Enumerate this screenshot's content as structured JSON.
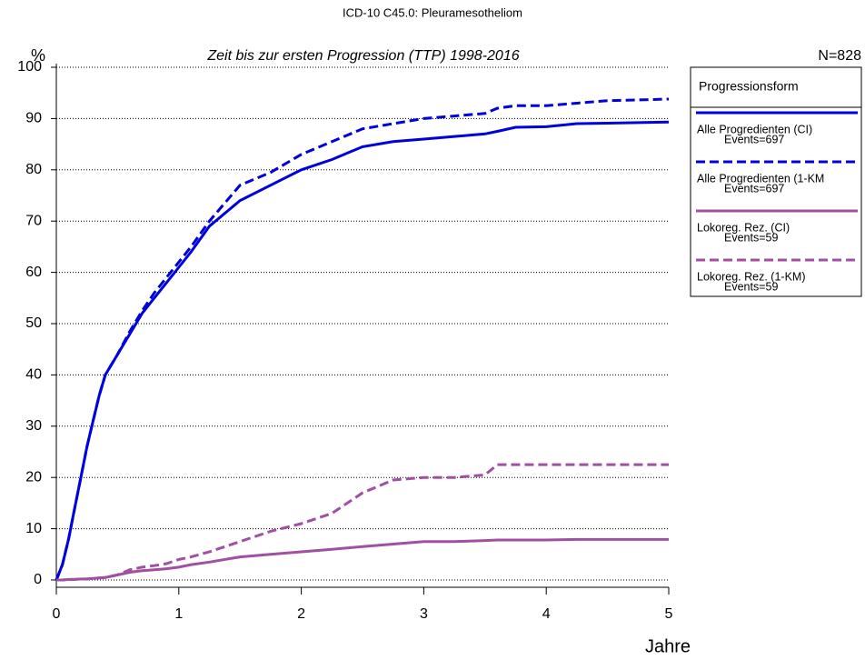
{
  "chart_data": {
    "type": "line",
    "title": "ICD-10 C45.0: Pleuramesotheliom",
    "subtitle": "Zeit bis zur ersten Progression (TTP) 1998-2016",
    "y_label": "%",
    "x_label": "Jahre",
    "annotation": "N=828",
    "legend_title": "Progressionsform",
    "grid": true,
    "x": [
      0,
      0.05,
      0.1,
      0.15,
      0.2,
      0.25,
      0.3,
      0.35,
      0.4,
      0.5,
      0.6,
      0.7,
      0.8,
      0.9,
      1,
      1.1,
      1.25,
      1.5,
      1.75,
      2,
      2.25,
      2.5,
      2.75,
      3,
      3.25,
      3.5,
      3.6,
      3.75,
      4,
      4.25,
      4.5,
      5
    ],
    "xlim": [
      0,
      5
    ],
    "xticks": [
      0,
      1,
      2,
      3,
      4,
      5
    ],
    "ylim": [
      0,
      100
    ],
    "yticks": [
      0,
      10,
      20,
      30,
      40,
      50,
      60,
      70,
      80,
      90,
      100
    ],
    "series": [
      {
        "name": "Alle Progredienten (CI)",
        "events": "Events=697",
        "color": "#0000dd",
        "dashed": false,
        "values": [
          0,
          3,
          8,
          14,
          20,
          26,
          31,
          36,
          40,
          44,
          48,
          52,
          55,
          58,
          61,
          64,
          69,
          74,
          77,
          80,
          82,
          84.5,
          85.5,
          86,
          86.5,
          87,
          87.5,
          88.3,
          88.4,
          89,
          89.1,
          89.3
        ]
      },
      {
        "name": "Alle Progredienten (1-KM",
        "events": "Events=697",
        "color": "#0000dd",
        "dashed": true,
        "values": [
          0,
          3,
          8,
          14,
          20,
          26,
          31,
          36,
          40,
          44,
          48.5,
          52.5,
          56,
          59,
          62,
          65,
          70,
          77,
          79.5,
          83,
          85.5,
          88,
          89,
          90,
          90.5,
          91,
          92,
          92.5,
          92.5,
          93,
          93.5,
          93.8
        ]
      },
      {
        "name": "Lokoreg. Rez. (CI)",
        "events": "Events=59",
        "color": "#a050a0",
        "dashed": false,
        "values": [
          0,
          0,
          0.1,
          0.1,
          0.2,
          0.2,
          0.3,
          0.4,
          0.5,
          1,
          1.5,
          1.8,
          2,
          2.2,
          2.5,
          3,
          3.5,
          4.5,
          5,
          5.5,
          6,
          6.5,
          7,
          7.5,
          7.5,
          7.7,
          7.8,
          7.8,
          7.8,
          7.9,
          7.9,
          7.9
        ]
      },
      {
        "name": "Lokoreg. Rez. (1-KM)",
        "events": "Events=59",
        "color": "#a050a0",
        "dashed": true,
        "values": [
          0,
          0,
          0.1,
          0.1,
          0.2,
          0.2,
          0.3,
          0.4,
          0.5,
          1,
          2,
          2.5,
          2.8,
          3.2,
          4,
          4.5,
          5.5,
          7.5,
          9.5,
          11,
          13,
          17,
          19.5,
          20,
          20,
          20.5,
          22.5,
          22.5,
          22.5,
          22.5,
          22.5,
          22.5
        ]
      }
    ]
  }
}
